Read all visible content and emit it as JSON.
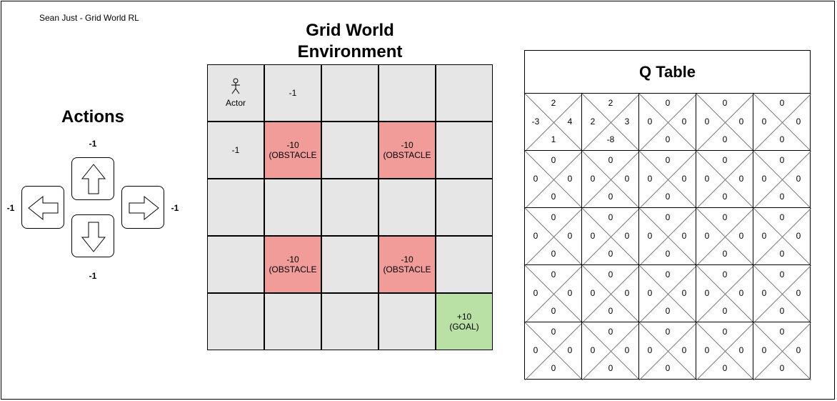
{
  "caption": "Sean Just - Grid World RL",
  "actions": {
    "title": "Actions",
    "up_reward": "-1",
    "down_reward": "-1",
    "left_reward": "-1",
    "right_reward": "-1"
  },
  "grid": {
    "title_line1": "Grid World",
    "title_line2": "Environment",
    "cells": [
      [
        {
          "type": "actor",
          "label": "Actor"
        },
        {
          "type": "empty",
          "label": "-1"
        },
        {
          "type": "empty",
          "label": ""
        },
        {
          "type": "empty",
          "label": ""
        },
        {
          "type": "empty",
          "label": ""
        }
      ],
      [
        {
          "type": "empty",
          "label": "-1"
        },
        {
          "type": "obstacle",
          "label": "-10",
          "sub": "(OBSTACLE"
        },
        {
          "type": "empty",
          "label": ""
        },
        {
          "type": "obstacle",
          "label": "-10",
          "sub": "(OBSTACLE"
        },
        {
          "type": "empty",
          "label": ""
        }
      ],
      [
        {
          "type": "empty",
          "label": ""
        },
        {
          "type": "empty",
          "label": ""
        },
        {
          "type": "empty",
          "label": ""
        },
        {
          "type": "empty",
          "label": ""
        },
        {
          "type": "empty",
          "label": ""
        }
      ],
      [
        {
          "type": "empty",
          "label": ""
        },
        {
          "type": "obstacle",
          "label": "-10",
          "sub": "(OBSTACLE"
        },
        {
          "type": "empty",
          "label": ""
        },
        {
          "type": "obstacle",
          "label": "-10",
          "sub": "(OBSTACLE"
        },
        {
          "type": "empty",
          "label": ""
        }
      ],
      [
        {
          "type": "empty",
          "label": ""
        },
        {
          "type": "empty",
          "label": ""
        },
        {
          "type": "empty",
          "label": ""
        },
        {
          "type": "empty",
          "label": ""
        },
        {
          "type": "goal",
          "label": "+10",
          "sub": "(GOAL)"
        }
      ]
    ],
    "colors": {
      "empty": "#e6e6e6",
      "obstacle": "#f19c99",
      "goal": "#b9e0a5"
    }
  },
  "qtable": {
    "title": "Q Table",
    "rows": [
      [
        {
          "up": "2",
          "down": "1",
          "left": "-3",
          "right": "4"
        },
        {
          "up": "2",
          "down": "-8",
          "left": "2",
          "right": "3"
        },
        {
          "up": "0",
          "down": "0",
          "left": "0",
          "right": "0"
        },
        {
          "up": "0",
          "down": "0",
          "left": "0",
          "right": "0"
        },
        {
          "up": "0",
          "down": "0",
          "left": "0",
          "right": "0"
        }
      ],
      [
        {
          "up": "0",
          "down": "0",
          "left": "0",
          "right": "0"
        },
        {
          "up": "0",
          "down": "0",
          "left": "0",
          "right": "0"
        },
        {
          "up": "0",
          "down": "0",
          "left": "0",
          "right": "0"
        },
        {
          "up": "0",
          "down": "0",
          "left": "0",
          "right": "0"
        },
        {
          "up": "0",
          "down": "0",
          "left": "0",
          "right": "0"
        }
      ],
      [
        {
          "up": "0",
          "down": "0",
          "left": "0",
          "right": "0"
        },
        {
          "up": "0",
          "down": "0",
          "left": "0",
          "right": "0"
        },
        {
          "up": "0",
          "down": "0",
          "left": "0",
          "right": "0"
        },
        {
          "up": "0",
          "down": "0",
          "left": "0",
          "right": "0"
        },
        {
          "up": "0",
          "down": "0",
          "left": "0",
          "right": "0"
        }
      ],
      [
        {
          "up": "0",
          "down": "0",
          "left": "0",
          "right": "0"
        },
        {
          "up": "0",
          "down": "0",
          "left": "0",
          "right": "0"
        },
        {
          "up": "0",
          "down": "0",
          "left": "0",
          "right": "0"
        },
        {
          "up": "0",
          "down": "0",
          "left": "0",
          "right": "0"
        },
        {
          "up": "0",
          "down": "0",
          "left": "0",
          "right": "0"
        }
      ],
      [
        {
          "up": "0",
          "down": "0",
          "left": "0",
          "right": "0"
        },
        {
          "up": "0",
          "down": "0",
          "left": "0",
          "right": "0"
        },
        {
          "up": "0",
          "down": "0",
          "left": "0",
          "right": "0"
        },
        {
          "up": "0",
          "down": "0",
          "left": "0",
          "right": "0"
        },
        {
          "up": "0",
          "down": "0",
          "left": "0",
          "right": "0"
        }
      ]
    ]
  }
}
